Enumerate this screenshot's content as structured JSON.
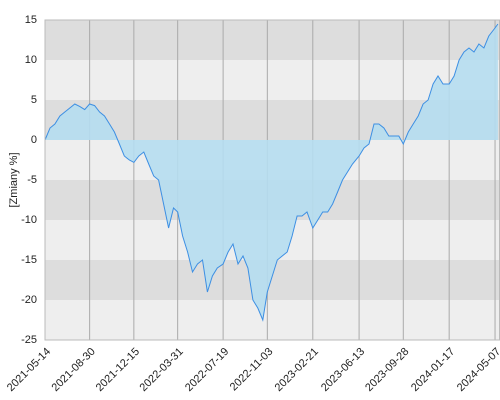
{
  "chart_data": {
    "type": "area",
    "ylabel": "[Zmiany %]",
    "x": [
      "2021-05-14",
      "2021-05-26",
      "2021-06-07",
      "2021-06-19",
      "2021-07-01",
      "2021-07-13",
      "2021-07-25",
      "2021-08-06",
      "2021-08-18",
      "2021-08-30",
      "2021-09-11",
      "2021-09-23",
      "2021-10-05",
      "2021-10-17",
      "2021-10-29",
      "2021-11-10",
      "2021-11-22",
      "2021-12-04",
      "2021-12-15",
      "2021-12-27",
      "2022-01-08",
      "2022-01-20",
      "2022-02-01",
      "2022-02-13",
      "2022-02-25",
      "2022-03-09",
      "2022-03-21",
      "2022-03-31",
      "2022-04-12",
      "2022-04-24",
      "2022-05-06",
      "2022-05-18",
      "2022-05-30",
      "2022-06-11",
      "2022-06-23",
      "2022-07-05",
      "2022-07-19",
      "2022-07-31",
      "2022-08-12",
      "2022-08-24",
      "2022-09-05",
      "2022-09-17",
      "2022-09-29",
      "2022-10-11",
      "2022-10-23",
      "2022-11-03",
      "2022-11-15",
      "2022-11-27",
      "2022-12-09",
      "2022-12-21",
      "2023-01-02",
      "2023-01-14",
      "2023-01-26",
      "2023-02-07",
      "2023-02-21",
      "2023-03-05",
      "2023-03-17",
      "2023-03-29",
      "2023-04-10",
      "2023-04-22",
      "2023-05-04",
      "2023-05-16",
      "2023-05-28",
      "2023-06-13",
      "2023-06-25",
      "2023-07-07",
      "2023-07-19",
      "2023-07-31",
      "2023-08-12",
      "2023-08-24",
      "2023-09-05",
      "2023-09-17",
      "2023-09-28",
      "2023-10-10",
      "2023-10-22",
      "2023-11-03",
      "2023-11-15",
      "2023-11-27",
      "2023-12-09",
      "2023-12-21",
      "2024-01-02",
      "2024-01-17",
      "2024-01-29",
      "2024-02-10",
      "2024-02-22",
      "2024-03-05",
      "2024-03-17",
      "2024-03-29",
      "2024-04-10",
      "2024-04-22",
      "2024-05-07",
      "2024-05-14"
    ],
    "series": [
      {
        "name": "Zmiany",
        "color": "#3d8fe3",
        "fill": "#b5ddef",
        "values": [
          0,
          1.5,
          2,
          3,
          3.5,
          4,
          4.5,
          4.2,
          3.8,
          4.5,
          4.3,
          3.5,
          3,
          2,
          1,
          -0.5,
          -2,
          -2.5,
          -2.8,
          -2,
          -1.5,
          -3,
          -4.5,
          -5,
          -8,
          -11,
          -8.5,
          -9,
          -12,
          -14,
          -16.5,
          -15.5,
          -15,
          -19,
          -17,
          -16,
          -15.5,
          -14,
          -13,
          -15.5,
          -14.5,
          -16,
          -20,
          -21,
          -22.5,
          -19,
          -17,
          -15,
          -14.5,
          -14,
          -12,
          -9.5,
          -9.5,
          -9,
          -11,
          -10,
          -9,
          -9,
          -8,
          -6.5,
          -5,
          -4,
          -3,
          -2,
          -1,
          -0.5,
          2,
          2,
          1.5,
          0.5,
          0.5,
          0.5,
          -0.5,
          1,
          2,
          3,
          4.5,
          5,
          7,
          8,
          7,
          7,
          8,
          10,
          11,
          11.5,
          11,
          12,
          11.5,
          13,
          14,
          14.5
        ]
      }
    ],
    "xlim": [
      "2021-05-14",
      "2024-05-19"
    ],
    "xticks": [
      "2021-05-14",
      "2021-08-30",
      "2021-12-15",
      "2022-03-31",
      "2022-07-19",
      "2022-11-03",
      "2023-02-21",
      "2023-06-13",
      "2023-09-28",
      "2024-01-17",
      "2024-05-07"
    ],
    "ylim": [
      -25,
      15
    ],
    "yticks": [
      -25,
      -20,
      -15,
      -10,
      -5,
      0,
      5,
      10,
      15
    ],
    "band_colors": [
      "#eeeeee",
      "#dddddd"
    ],
    "grid": true
  }
}
